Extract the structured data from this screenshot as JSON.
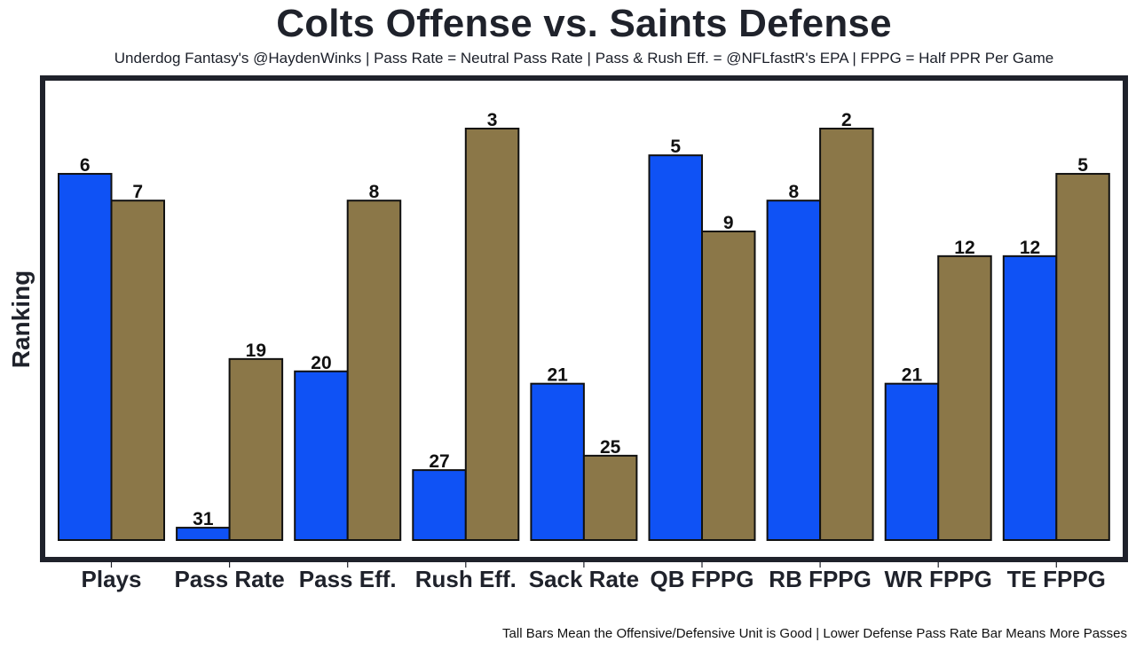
{
  "chart_data": {
    "type": "bar",
    "title": "Colts Offense vs. Saints Defense",
    "subtitle": "Underdog Fantasy's @HaydenWinks | Pass Rate = Neutral Pass Rate | Pass & Rush Eff. = @NFLfastR's EPA | FPPG = Half PPR Per Game",
    "footer": "Tall Bars Mean the Offensive/Defensive Unit is Good | Lower Defense Pass Rate Bar Means More Passes",
    "xlabel": "",
    "ylabel": "Ranking",
    "grid": false,
    "legend": "none",
    "categories": [
      "Plays",
      "Pass Rate",
      "Pass Eff.",
      "Rush Eff.",
      "Sack Rate",
      "QB FPPG",
      "RB FPPG",
      "WR FPPG",
      "TE FPPG"
    ],
    "ylim": [
      0,
      1
    ],
    "series": [
      {
        "name": "Colts Offense",
        "color": "#0f52f5",
        "ranks": [
          6,
          31,
          20,
          27,
          21,
          5,
          8,
          21,
          12
        ],
        "bar_values": [
          0.89,
          0.03,
          0.41,
          0.17,
          0.38,
          0.935,
          0.825,
          0.38,
          0.69
        ]
      },
      {
        "name": "Saints Defense",
        "color": "#8b7748",
        "ranks": [
          7,
          19,
          8,
          3,
          25,
          9,
          2,
          12,
          5
        ],
        "bar_values": [
          0.825,
          0.44,
          0.825,
          1.0,
          0.205,
          0.75,
          1.0,
          0.69,
          0.89
        ]
      }
    ]
  }
}
